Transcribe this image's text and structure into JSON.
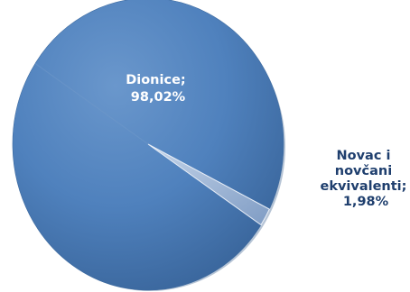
{
  "chart_data": {
    "type": "pie",
    "slices": [
      {
        "label_lines": [
          "Dionice;",
          "98,02%"
        ],
        "category": "Dionice",
        "value": 98.02,
        "color": "#4f81bd"
      },
      {
        "label_lines": [
          "Novac i",
          "novčani",
          "ekvivalenti;",
          "1,98%"
        ],
        "category": "Novac i novčani ekvivalenti",
        "value": 1.98,
        "color": "#9cb5d6"
      }
    ],
    "title": "",
    "legend": "none",
    "style": "3d-tilted"
  }
}
